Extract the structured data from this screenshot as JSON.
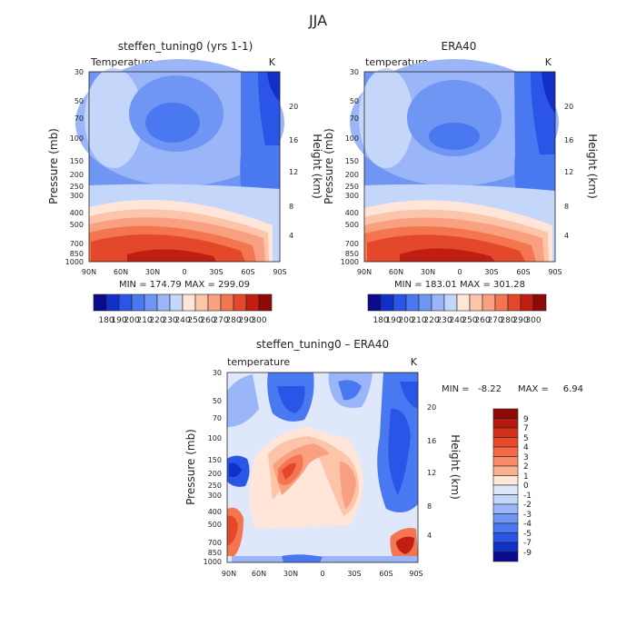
{
  "page_title": "JJA",
  "chart_data": [
    {
      "type": "heatmap",
      "title": "steffen_tuning0 (yrs 1-1)",
      "subtitle": "Temperature",
      "unit": "K",
      "ylabel": "Pressure (mb)",
      "ylabel_right": "Height (km)",
      "x_ticks": [
        "90N",
        "60N",
        "30N",
        "0",
        "30S",
        "60S",
        "90S"
      ],
      "y_ticks": [
        "30",
        "50",
        "70",
        "100",
        "150",
        "200",
        "250",
        "300",
        "400",
        "500",
        "700",
        "850",
        "1000"
      ],
      "height_ticks": [
        "4",
        "8",
        "12",
        "16",
        "20"
      ],
      "stats": "MIN = 174.79   MAX = 299.09",
      "colorbar_labels": [
        "180",
        "190",
        "200",
        "210",
        "220",
        "230",
        "240",
        "250",
        "260",
        "270",
        "280",
        "290",
        "300"
      ],
      "colors": [
        "#0a0a8c",
        "#1230c8",
        "#2a55e6",
        "#4a78f0",
        "#7096f4",
        "#9ab6f8",
        "#c4d6fa",
        "#ffe6d8",
        "#fcc4a8",
        "#f9a080",
        "#f47650",
        "#e4482a",
        "#c01e12",
        "#8e0a06"
      ]
    },
    {
      "type": "heatmap",
      "title": "ERA40",
      "subtitle": "temperature",
      "unit": "K",
      "ylabel": "Pressure (mb)",
      "ylabel_right": "Height (km)",
      "x_ticks": [
        "90N",
        "60N",
        "30N",
        "0",
        "30S",
        "60S",
        "90S"
      ],
      "y_ticks": [
        "30",
        "50",
        "70",
        "100",
        "150",
        "200",
        "250",
        "300",
        "400",
        "500",
        "700",
        "850",
        "1000"
      ],
      "height_ticks": [
        "4",
        "8",
        "12",
        "16",
        "20"
      ],
      "stats": "MIN = 183.01   MAX = 301.28",
      "colorbar_labels": [
        "180",
        "190",
        "200",
        "210",
        "220",
        "230",
        "240",
        "250",
        "260",
        "270",
        "280",
        "290",
        "300"
      ],
      "colors": [
        "#0a0a8c",
        "#1230c8",
        "#2a55e6",
        "#4a78f0",
        "#7096f4",
        "#9ab6f8",
        "#c4d6fa",
        "#ffe6d8",
        "#fcc4a8",
        "#f9a080",
        "#f47650",
        "#e4482a",
        "#c01e12",
        "#8e0a06"
      ]
    },
    {
      "type": "heatmap",
      "title": "steffen_tuning0 – ERA40",
      "subtitle": "temperature",
      "unit": "K",
      "ylabel": "Pressure (mb)",
      "ylabel_right": "Height (km)",
      "x_ticks": [
        "90N",
        "60N",
        "30N",
        "0",
        "30S",
        "60S",
        "90S"
      ],
      "y_ticks": [
        "30",
        "50",
        "70",
        "100",
        "150",
        "200",
        "250",
        "300",
        "400",
        "500",
        "700",
        "850",
        "1000"
      ],
      "height_ticks": [
        "4",
        "8",
        "12",
        "16",
        "20"
      ],
      "stats_min": "MIN =   -8.22",
      "stats_max": "MAX =     6.94",
      "colorbar_labels": [
        "9",
        "7",
        "5",
        "4",
        "3",
        "2",
        "1",
        "0",
        "-1",
        "-2",
        "-3",
        "-4",
        "-5",
        "-7",
        "-9"
      ],
      "colors": [
        "#8e0a06",
        "#b41a0e",
        "#d23018",
        "#ea4a2a",
        "#f46a46",
        "#f88c68",
        "#fbb090",
        "#ffe6d8",
        "#dfe8fb",
        "#c4d6fa",
        "#9ab6f8",
        "#7096f4",
        "#4a78f0",
        "#2a55e6",
        "#1230c8",
        "#0a0a8c"
      ]
    }
  ]
}
